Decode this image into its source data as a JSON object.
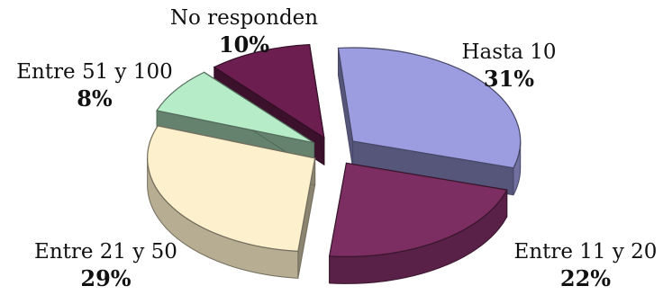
{
  "chart_data": {
    "type": "pie",
    "title": "",
    "categories": [
      "Hasta 10",
      "Entre 11 y 20",
      "Entre 21 y 50",
      "Entre 51 y 100",
      "No responden"
    ],
    "values": [
      31,
      22,
      29,
      8,
      10
    ],
    "labels": [
      "31%",
      "22%",
      "29%",
      "8%",
      "10%"
    ],
    "colors": [
      "#9c9ce0",
      "#7c2e62",
      "#fdf0cc",
      "#b7ecc8",
      "#6c1e50"
    ],
    "exploded": true,
    "three_d": true,
    "legend": "none"
  }
}
